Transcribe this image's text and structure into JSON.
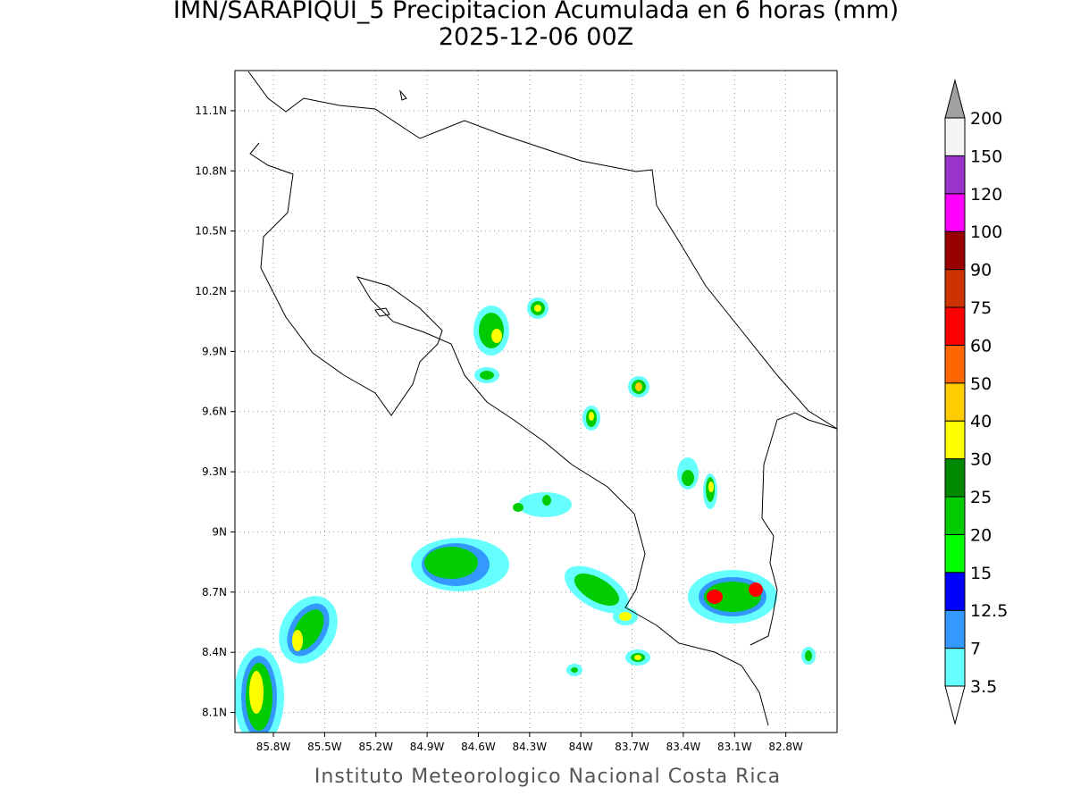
{
  "title": "IMN/SARAPIQUI_5 Precipitacion Acumulada en 6 horas (mm)",
  "subtitle": "2025-12-06 00Z",
  "footer": "Instituto Meteorologico Nacional Costa Rica",
  "map": {
    "lon_range": [
      -86.025,
      -82.5
    ],
    "lat_range": [
      8.0,
      11.3
    ],
    "lat_ticks": [
      {
        "value": 11.1,
        "label": "11.1N"
      },
      {
        "value": 10.8,
        "label": "10.8N"
      },
      {
        "value": 10.5,
        "label": "10.5N"
      },
      {
        "value": 10.2,
        "label": "10.2N"
      },
      {
        "value": 9.9,
        "label": "9.9N"
      },
      {
        "value": 9.6,
        "label": "9.6N"
      },
      {
        "value": 9.3,
        "label": "9.3N"
      },
      {
        "value": 9.0,
        "label": "9N"
      },
      {
        "value": 8.7,
        "label": "8.7N"
      },
      {
        "value": 8.4,
        "label": "8.4N"
      },
      {
        "value": 8.1,
        "label": "8.1N"
      }
    ],
    "lon_ticks": [
      {
        "value": -85.8,
        "label": "85.8W"
      },
      {
        "value": -85.5,
        "label": "85.5W"
      },
      {
        "value": -85.2,
        "label": "85.2W"
      },
      {
        "value": -84.9,
        "label": "84.9W"
      },
      {
        "value": -84.6,
        "label": "84.6W"
      },
      {
        "value": -84.3,
        "label": "84.3W"
      },
      {
        "value": -84.0,
        "label": "84W"
      },
      {
        "value": -83.7,
        "label": "83.7W"
      },
      {
        "value": -83.4,
        "label": "83.4W"
      },
      {
        "value": -83.1,
        "label": "83.1W"
      },
      {
        "value": -82.8,
        "label": "82.8W"
      }
    ]
  },
  "colorbar": {
    "levels": [
      3.5,
      7,
      12.5,
      15,
      20,
      25,
      30,
      40,
      50,
      60,
      75,
      90,
      100,
      120,
      150,
      200
    ],
    "colors": [
      "#66ffff",
      "#3399ff",
      "#0000ff",
      "#00ff00",
      "#00cc00",
      "#008800",
      "#ffff00",
      "#ffcc00",
      "#ff6600",
      "#ff0000",
      "#cc3300",
      "#990000",
      "#ff00ff",
      "#9933cc",
      "#f4f4f4"
    ],
    "under_color": "#ffffff",
    "over_color": "#a0a0a0"
  }
}
